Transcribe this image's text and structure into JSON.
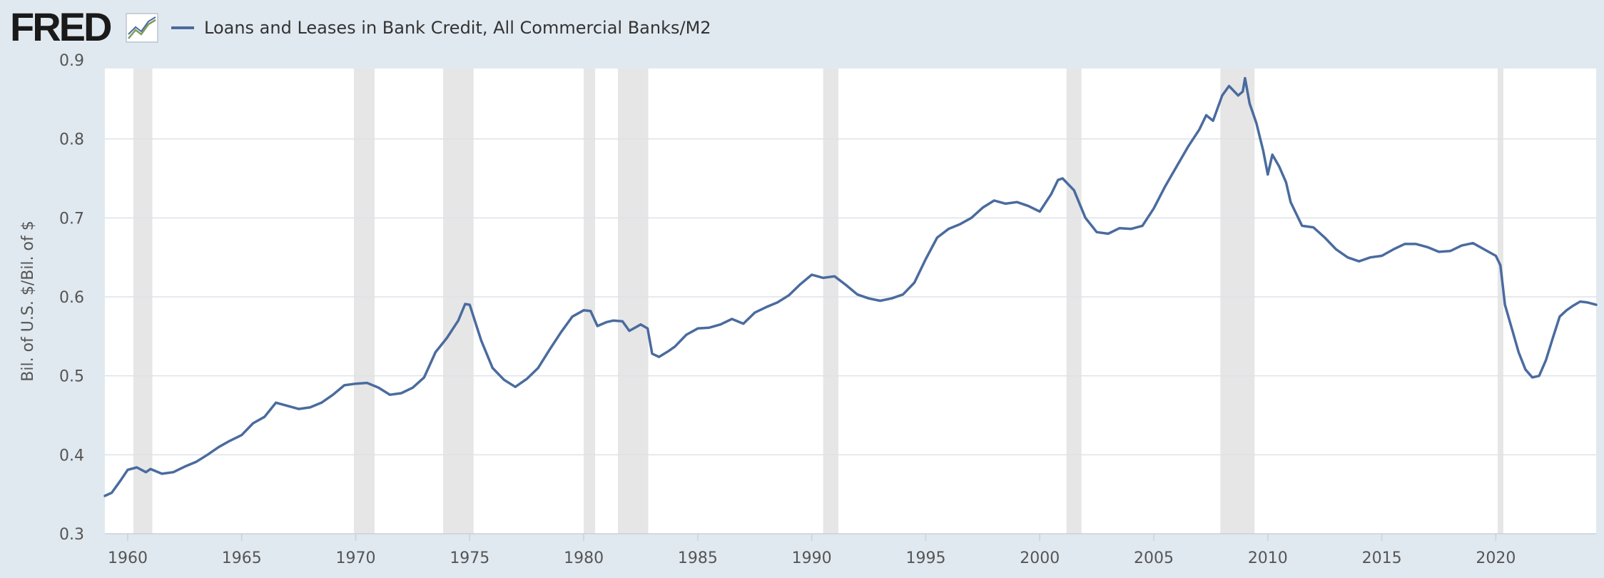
{
  "header": {
    "logo_text": "FRED",
    "series_title": "Loans and Leases in Bank Credit, All Commercial Banks/M2"
  },
  "colors": {
    "line": "#4a6b9e",
    "recession": "#e6e6e6",
    "grid": "#dde2e8",
    "background": "#e1e9f0",
    "plot": "#ffffff"
  },
  "chart_data": {
    "type": "line",
    "title": "Loans and Leases in Bank Credit, All Commercial Banks/M2",
    "xlabel": "",
    "ylabel": "Bil. of U.S. $/Bil. of $",
    "xlim": [
      1959.0,
      2024.4
    ],
    "ylim": [
      0.3,
      0.9
    ],
    "x_ticks": [
      1960,
      1965,
      1970,
      1975,
      1980,
      1985,
      1990,
      1995,
      2000,
      2005,
      2010,
      2015,
      2020
    ],
    "x_tick_labels": [
      "1960",
      "1965",
      "1970",
      "1975",
      "1980",
      "1985",
      "1990",
      "1995",
      "2000",
      "2005",
      "2010",
      "2015",
      "2020"
    ],
    "y_ticks": [
      0.3,
      0.4,
      0.5,
      0.6,
      0.7,
      0.8,
      0.9
    ],
    "y_tick_labels": [
      "0.3",
      "0.4",
      "0.5",
      "0.6",
      "0.7",
      "0.8",
      "0.9"
    ],
    "grid": true,
    "recessions": [
      [
        1960.25,
        1961.08
      ],
      [
        1969.92,
        1970.83
      ],
      [
        1973.83,
        1975.17
      ],
      [
        1980.0,
        1980.5
      ],
      [
        1981.5,
        1982.83
      ],
      [
        1990.5,
        1991.17
      ],
      [
        2001.17,
        2001.83
      ],
      [
        2007.92,
        2009.42
      ],
      [
        2020.08,
        2020.33
      ]
    ],
    "series": [
      {
        "name": "Loans and Leases in Bank Credit, All Commercial Banks/M2",
        "x": [
          1959.0,
          1959.3,
          1959.7,
          1960.0,
          1960.4,
          1960.8,
          1961.0,
          1961.5,
          1962.0,
          1962.5,
          1963.0,
          1963.5,
          1964.0,
          1964.5,
          1965.0,
          1965.5,
          1966.0,
          1966.5,
          1967.0,
          1967.5,
          1968.0,
          1968.5,
          1969.0,
          1969.5,
          1970.0,
          1970.5,
          1971.0,
          1971.5,
          1972.0,
          1972.5,
          1973.0,
          1973.5,
          1974.0,
          1974.5,
          1974.8,
          1975.0,
          1975.5,
          1976.0,
          1976.5,
          1977.0,
          1977.5,
          1978.0,
          1978.5,
          1979.0,
          1979.5,
          1980.0,
          1980.3,
          1980.6,
          1981.0,
          1981.3,
          1981.7,
          1982.0,
          1982.5,
          1982.8,
          1983.0,
          1983.3,
          1983.7,
          1984.0,
          1984.5,
          1985.0,
          1985.5,
          1986.0,
          1986.5,
          1987.0,
          1987.5,
          1988.0,
          1988.5,
          1989.0,
          1989.5,
          1990.0,
          1990.5,
          1991.0,
          1991.5,
          1992.0,
          1992.5,
          1993.0,
          1993.5,
          1994.0,
          1994.5,
          1995.0,
          1995.5,
          1996.0,
          1996.5,
          1997.0,
          1997.5,
          1998.0,
          1998.5,
          1999.0,
          1999.5,
          2000.0,
          2000.5,
          2000.8,
          2001.0,
          2001.5,
          2002.0,
          2002.5,
          2003.0,
          2003.5,
          2004.0,
          2004.5,
          2005.0,
          2005.5,
          2006.0,
          2006.5,
          2007.0,
          2007.3,
          2007.6,
          2008.0,
          2008.3,
          2008.7,
          2008.9,
          2009.0,
          2009.2,
          2009.5,
          2009.8,
          2010.0,
          2010.2,
          2010.5,
          2010.8,
          2011.0,
          2011.5,
          2012.0,
          2012.5,
          2013.0,
          2013.5,
          2014.0,
          2014.5,
          2015.0,
          2015.5,
          2016.0,
          2016.5,
          2017.0,
          2017.5,
          2018.0,
          2018.5,
          2019.0,
          2019.5,
          2020.0,
          2020.2,
          2020.4,
          2020.7,
          2021.0,
          2021.3,
          2021.6,
          2021.9,
          2022.2,
          2022.5,
          2022.8,
          2023.1,
          2023.4,
          2023.7,
          2024.0,
          2024.4
        ],
        "values": [
          0.348,
          0.352,
          0.368,
          0.381,
          0.384,
          0.378,
          0.382,
          0.376,
          0.378,
          0.385,
          0.391,
          0.4,
          0.41,
          0.418,
          0.425,
          0.44,
          0.448,
          0.466,
          0.462,
          0.458,
          0.46,
          0.466,
          0.476,
          0.488,
          0.49,
          0.491,
          0.485,
          0.476,
          0.478,
          0.485,
          0.498,
          0.53,
          0.548,
          0.57,
          0.591,
          0.59,
          0.545,
          0.51,
          0.495,
          0.486,
          0.496,
          0.51,
          0.533,
          0.555,
          0.575,
          0.583,
          0.582,
          0.563,
          0.568,
          0.57,
          0.569,
          0.557,
          0.565,
          0.56,
          0.528,
          0.524,
          0.531,
          0.537,
          0.552,
          0.56,
          0.561,
          0.565,
          0.572,
          0.566,
          0.58,
          0.587,
          0.593,
          0.602,
          0.616,
          0.628,
          0.624,
          0.626,
          0.615,
          0.603,
          0.598,
          0.595,
          0.598,
          0.603,
          0.618,
          0.648,
          0.675,
          0.686,
          0.692,
          0.7,
          0.713,
          0.722,
          0.718,
          0.72,
          0.715,
          0.708,
          0.73,
          0.748,
          0.75,
          0.735,
          0.7,
          0.682,
          0.68,
          0.687,
          0.686,
          0.69,
          0.712,
          0.74,
          0.765,
          0.79,
          0.812,
          0.83,
          0.823,
          0.855,
          0.867,
          0.855,
          0.86,
          0.877,
          0.845,
          0.82,
          0.785,
          0.755,
          0.78,
          0.765,
          0.745,
          0.72,
          0.69,
          0.688,
          0.675,
          0.66,
          0.65,
          0.645,
          0.65,
          0.652,
          0.66,
          0.667,
          0.667,
          0.663,
          0.657,
          0.658,
          0.665,
          0.668,
          0.66,
          0.652,
          0.64,
          0.59,
          0.56,
          0.53,
          0.508,
          0.498,
          0.5,
          0.52,
          0.548,
          0.575,
          0.583,
          0.589,
          0.594,
          0.593,
          0.59
        ]
      }
    ]
  }
}
